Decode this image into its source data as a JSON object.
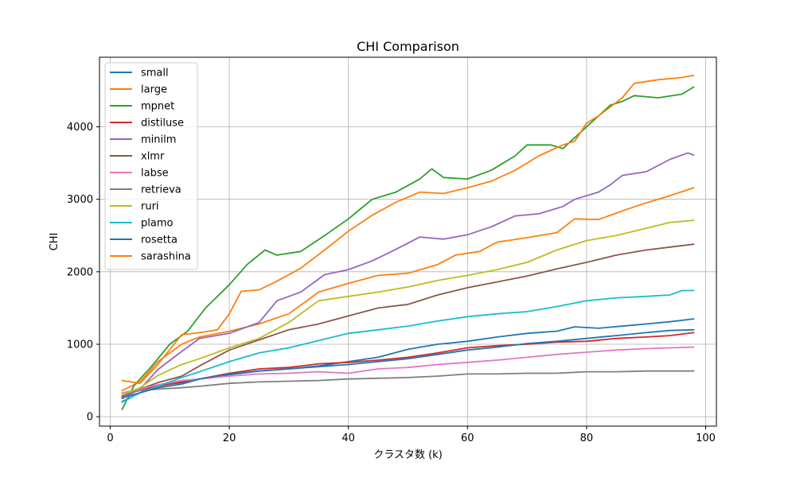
{
  "chart_data": {
    "type": "line",
    "title": "CHI Comparison",
    "xlabel": "クラスタ数 (k)",
    "ylabel": "CHI",
    "xlim": [
      -1.8,
      101.8
    ],
    "ylim": [
      -130,
      4960
    ],
    "xticks": [
      0,
      20,
      40,
      60,
      80,
      100
    ],
    "yticks": [
      0,
      1000,
      2000,
      3000,
      4000
    ],
    "grid": true,
    "legend_position": "upper-left",
    "series": [
      {
        "name": "small",
        "color": "#1f77b4",
        "points": [
          [
            2,
            210
          ],
          [
            5,
            330
          ],
          [
            8,
            430
          ],
          [
            12,
            470
          ],
          [
            15,
            520
          ],
          [
            20,
            580
          ],
          [
            25,
            630
          ],
          [
            30,
            660
          ],
          [
            35,
            700
          ],
          [
            40,
            760
          ],
          [
            45,
            820
          ],
          [
            50,
            930
          ],
          [
            55,
            1000
          ],
          [
            60,
            1040
          ],
          [
            65,
            1100
          ],
          [
            70,
            1150
          ],
          [
            75,
            1180
          ],
          [
            78,
            1240
          ],
          [
            82,
            1220
          ],
          [
            86,
            1250
          ],
          [
            90,
            1280
          ],
          [
            94,
            1310
          ],
          [
            98,
            1350
          ]
        ]
      },
      {
        "name": "large",
        "color": "#ff7f0e",
        "points": [
          [
            2,
            360
          ],
          [
            5,
            480
          ],
          [
            8,
            760
          ],
          [
            12,
            1000
          ],
          [
            15,
            1100
          ],
          [
            20,
            1180
          ],
          [
            25,
            1280
          ],
          [
            30,
            1420
          ],
          [
            35,
            1720
          ],
          [
            40,
            1840
          ],
          [
            45,
            1950
          ],
          [
            50,
            1980
          ],
          [
            55,
            2100
          ],
          [
            58,
            2230
          ],
          [
            62,
            2280
          ],
          [
            65,
            2410
          ],
          [
            70,
            2470
          ],
          [
            75,
            2540
          ],
          [
            78,
            2730
          ],
          [
            82,
            2720
          ],
          [
            86,
            2840
          ],
          [
            90,
            2950
          ],
          [
            94,
            3050
          ],
          [
            98,
            3160
          ]
        ]
      },
      {
        "name": "mpnet",
        "color": "#2ca02c",
        "points": [
          [
            2,
            100
          ],
          [
            4,
            430
          ],
          [
            7,
            700
          ],
          [
            10,
            1000
          ],
          [
            13,
            1180
          ],
          [
            16,
            1500
          ],
          [
            20,
            1820
          ],
          [
            23,
            2100
          ],
          [
            26,
            2300
          ],
          [
            28,
            2230
          ],
          [
            32,
            2280
          ],
          [
            36,
            2500
          ],
          [
            40,
            2730
          ],
          [
            44,
            3000
          ],
          [
            48,
            3100
          ],
          [
            52,
            3280
          ],
          [
            54,
            3420
          ],
          [
            56,
            3300
          ],
          [
            60,
            3280
          ],
          [
            64,
            3400
          ],
          [
            68,
            3600
          ],
          [
            70,
            3750
          ],
          [
            74,
            3750
          ],
          [
            76,
            3700
          ],
          [
            78,
            3850
          ],
          [
            80,
            4000
          ],
          [
            82,
            4150
          ],
          [
            84,
            4300
          ],
          [
            86,
            4350
          ],
          [
            88,
            4430
          ],
          [
            92,
            4400
          ],
          [
            96,
            4450
          ],
          [
            98,
            4550
          ]
        ]
      },
      {
        "name": "distiluse",
        "color": "#d62728",
        "points": [
          [
            2,
            300
          ],
          [
            5,
            370
          ],
          [
            8,
            420
          ],
          [
            12,
            480
          ],
          [
            15,
            520
          ],
          [
            20,
            600
          ],
          [
            25,
            660
          ],
          [
            30,
            680
          ],
          [
            35,
            730
          ],
          [
            40,
            750
          ],
          [
            45,
            780
          ],
          [
            50,
            820
          ],
          [
            55,
            880
          ],
          [
            60,
            950
          ],
          [
            65,
            980
          ],
          [
            70,
            1000
          ],
          [
            75,
            1030
          ],
          [
            80,
            1040
          ],
          [
            85,
            1080
          ],
          [
            90,
            1100
          ],
          [
            94,
            1120
          ],
          [
            98,
            1160
          ]
        ]
      },
      {
        "name": "minilm",
        "color": "#9467bd",
        "points": [
          [
            2,
            250
          ],
          [
            5,
            380
          ],
          [
            8,
            650
          ],
          [
            12,
            900
          ],
          [
            15,
            1080
          ],
          [
            20,
            1150
          ],
          [
            25,
            1300
          ],
          [
            28,
            1600
          ],
          [
            32,
            1720
          ],
          [
            36,
            1960
          ],
          [
            40,
            2030
          ],
          [
            44,
            2150
          ],
          [
            48,
            2310
          ],
          [
            52,
            2480
          ],
          [
            56,
            2450
          ],
          [
            60,
            2510
          ],
          [
            64,
            2620
          ],
          [
            68,
            2770
          ],
          [
            72,
            2800
          ],
          [
            76,
            2900
          ],
          [
            78,
            3000
          ],
          [
            82,
            3100
          ],
          [
            84,
            3200
          ],
          [
            86,
            3330
          ],
          [
            90,
            3380
          ],
          [
            94,
            3550
          ],
          [
            97,
            3640
          ],
          [
            98,
            3610
          ]
        ]
      },
      {
        "name": "xlmr",
        "color": "#8c564b",
        "points": [
          [
            2,
            280
          ],
          [
            5,
            380
          ],
          [
            8,
            470
          ],
          [
            12,
            560
          ],
          [
            15,
            700
          ],
          [
            20,
            920
          ],
          [
            25,
            1060
          ],
          [
            30,
            1200
          ],
          [
            35,
            1280
          ],
          [
            40,
            1390
          ],
          [
            45,
            1500
          ],
          [
            50,
            1550
          ],
          [
            55,
            1680
          ],
          [
            60,
            1780
          ],
          [
            65,
            1860
          ],
          [
            70,
            1940
          ],
          [
            75,
            2040
          ],
          [
            80,
            2130
          ],
          [
            85,
            2230
          ],
          [
            90,
            2300
          ],
          [
            94,
            2340
          ],
          [
            98,
            2380
          ]
        ]
      },
      {
        "name": "labse",
        "color": "#e377c2",
        "points": [
          [
            2,
            330
          ],
          [
            5,
            380
          ],
          [
            8,
            440
          ],
          [
            12,
            500
          ],
          [
            15,
            520
          ],
          [
            20,
            560
          ],
          [
            25,
            590
          ],
          [
            30,
            600
          ],
          [
            35,
            620
          ],
          [
            40,
            600
          ],
          [
            45,
            660
          ],
          [
            50,
            680
          ],
          [
            55,
            720
          ],
          [
            60,
            750
          ],
          [
            65,
            780
          ],
          [
            70,
            820
          ],
          [
            75,
            860
          ],
          [
            80,
            890
          ],
          [
            85,
            920
          ],
          [
            90,
            940
          ],
          [
            94,
            950
          ],
          [
            98,
            960
          ]
        ]
      },
      {
        "name": "retrieva",
        "color": "#7f7f7f",
        "points": [
          [
            2,
            300
          ],
          [
            5,
            360
          ],
          [
            8,
            380
          ],
          [
            12,
            400
          ],
          [
            15,
            420
          ],
          [
            20,
            460
          ],
          [
            25,
            480
          ],
          [
            30,
            490
          ],
          [
            35,
            500
          ],
          [
            40,
            520
          ],
          [
            45,
            530
          ],
          [
            50,
            540
          ],
          [
            55,
            560
          ],
          [
            60,
            590
          ],
          [
            65,
            590
          ],
          [
            70,
            600
          ],
          [
            75,
            600
          ],
          [
            80,
            620
          ],
          [
            85,
            620
          ],
          [
            90,
            630
          ],
          [
            94,
            630
          ],
          [
            98,
            630
          ]
        ]
      },
      {
        "name": "ruri",
        "color": "#bcbd22",
        "points": [
          [
            2,
            300
          ],
          [
            5,
            400
          ],
          [
            8,
            570
          ],
          [
            12,
            720
          ],
          [
            15,
            800
          ],
          [
            20,
            950
          ],
          [
            25,
            1080
          ],
          [
            30,
            1300
          ],
          [
            35,
            1600
          ],
          [
            40,
            1660
          ],
          [
            45,
            1720
          ],
          [
            50,
            1790
          ],
          [
            55,
            1880
          ],
          [
            60,
            1950
          ],
          [
            65,
            2030
          ],
          [
            70,
            2130
          ],
          [
            75,
            2300
          ],
          [
            80,
            2430
          ],
          [
            85,
            2500
          ],
          [
            90,
            2600
          ],
          [
            94,
            2680
          ],
          [
            98,
            2710
          ]
        ]
      },
      {
        "name": "plamo",
        "color": "#17becf",
        "points": [
          [
            2,
            200
          ],
          [
            5,
            330
          ],
          [
            8,
            420
          ],
          [
            12,
            540
          ],
          [
            15,
            620
          ],
          [
            20,
            760
          ],
          [
            25,
            880
          ],
          [
            30,
            950
          ],
          [
            35,
            1050
          ],
          [
            40,
            1150
          ],
          [
            45,
            1200
          ],
          [
            50,
            1250
          ],
          [
            55,
            1320
          ],
          [
            60,
            1380
          ],
          [
            65,
            1420
          ],
          [
            70,
            1450
          ],
          [
            75,
            1520
          ],
          [
            80,
            1600
          ],
          [
            85,
            1640
          ],
          [
            90,
            1660
          ],
          [
            94,
            1680
          ],
          [
            96,
            1740
          ],
          [
            98,
            1740
          ]
        ]
      },
      {
        "name": "rosetta",
        "color": "#1f77b4",
        "points": [
          [
            2,
            260
          ],
          [
            5,
            330
          ],
          [
            8,
            400
          ],
          [
            12,
            450
          ],
          [
            15,
            520
          ],
          [
            20,
            590
          ],
          [
            25,
            630
          ],
          [
            30,
            660
          ],
          [
            35,
            690
          ],
          [
            40,
            720
          ],
          [
            45,
            760
          ],
          [
            50,
            800
          ],
          [
            55,
            860
          ],
          [
            60,
            920
          ],
          [
            65,
            960
          ],
          [
            70,
            1010
          ],
          [
            75,
            1040
          ],
          [
            80,
            1080
          ],
          [
            85,
            1120
          ],
          [
            90,
            1160
          ],
          [
            94,
            1190
          ],
          [
            98,
            1200
          ]
        ]
      },
      {
        "name": "sarashina",
        "color": "#ff7f0e",
        "points": [
          [
            2,
            500
          ],
          [
            5,
            460
          ],
          [
            8,
            720
          ],
          [
            12,
            1130
          ],
          [
            15,
            1160
          ],
          [
            18,
            1200
          ],
          [
            20,
            1420
          ],
          [
            22,
            1730
          ],
          [
            25,
            1750
          ],
          [
            28,
            1870
          ],
          [
            32,
            2050
          ],
          [
            36,
            2300
          ],
          [
            40,
            2560
          ],
          [
            44,
            2780
          ],
          [
            48,
            2960
          ],
          [
            52,
            3100
          ],
          [
            56,
            3080
          ],
          [
            60,
            3160
          ],
          [
            64,
            3250
          ],
          [
            68,
            3400
          ],
          [
            72,
            3600
          ],
          [
            76,
            3750
          ],
          [
            78,
            3800
          ],
          [
            80,
            4050
          ],
          [
            82,
            4150
          ],
          [
            86,
            4400
          ],
          [
            88,
            4600
          ],
          [
            92,
            4650
          ],
          [
            96,
            4680
          ],
          [
            98,
            4710
          ]
        ]
      }
    ]
  }
}
